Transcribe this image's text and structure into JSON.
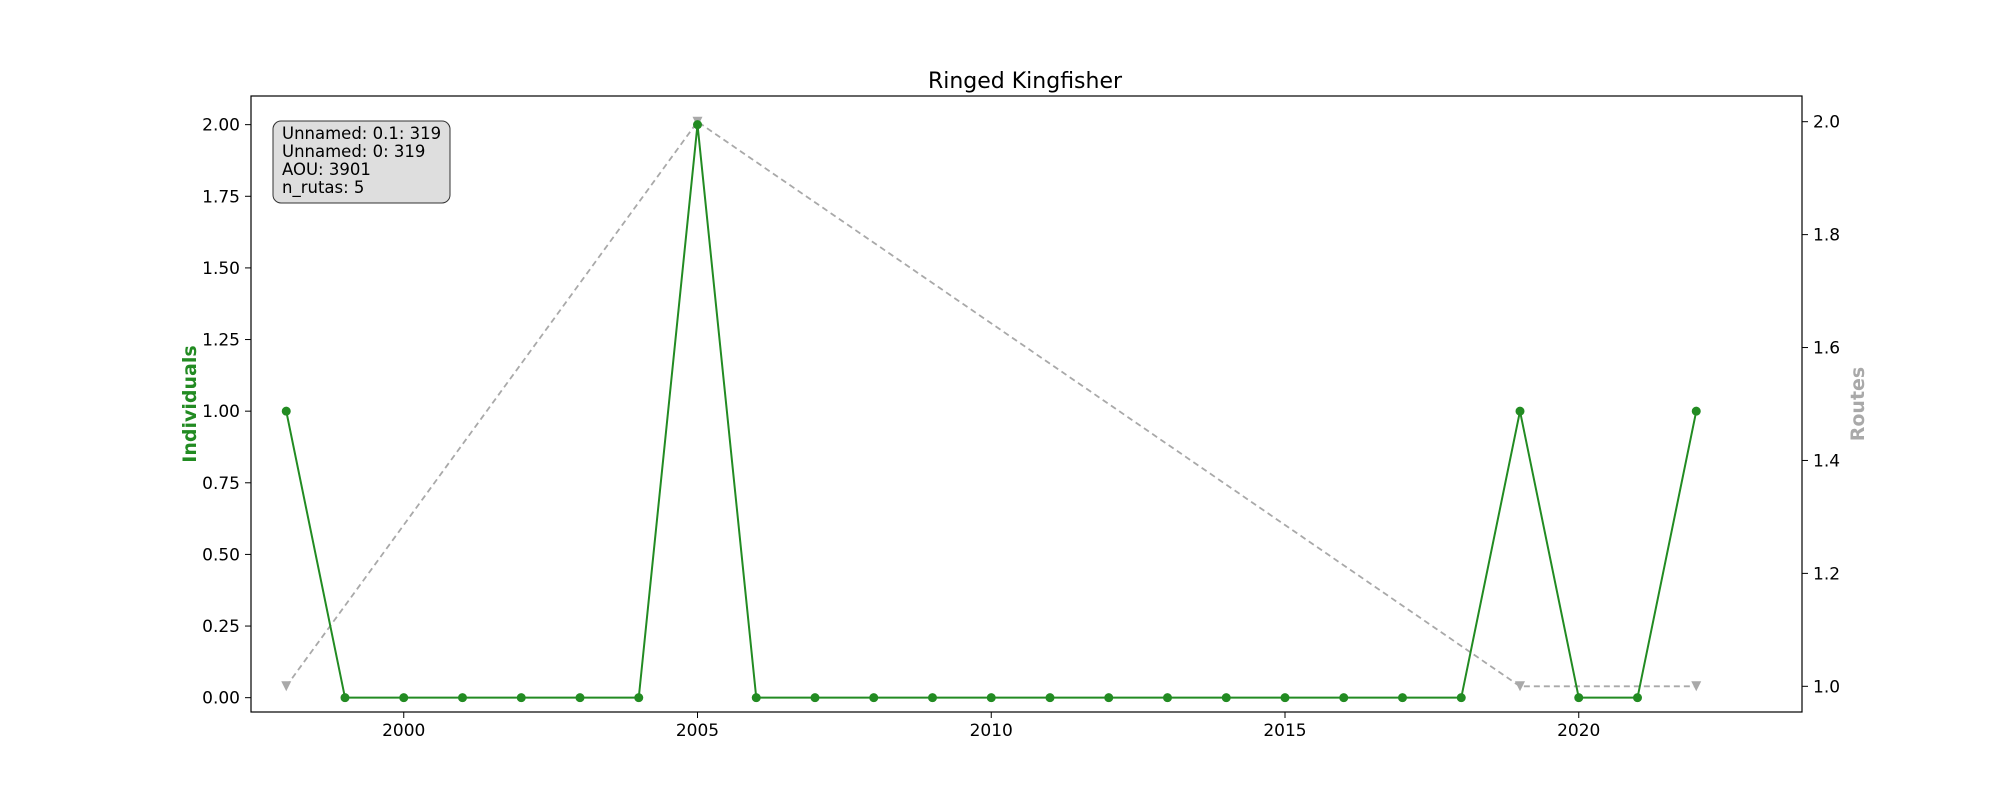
{
  "chart_data": {
    "type": "line",
    "title": "Ringed Kingfisher",
    "ylabel_left": "Individuals",
    "ylabel_right": "Routes",
    "xlim": [
      1997.4,
      2023.8
    ],
    "ylim_left": [
      -0.05,
      2.1
    ],
    "ylim_right": [
      0.9545,
      2.0455
    ],
    "x_ticks": [
      2000,
      2005,
      2010,
      2015,
      2020
    ],
    "y_ticks_left": [
      "0.00",
      "0.25",
      "0.50",
      "0.75",
      "1.00",
      "1.25",
      "1.50",
      "1.75",
      "2.00"
    ],
    "y_ticks_right": [
      "1.0",
      "1.2",
      "1.4",
      "1.6",
      "1.8",
      "2.0"
    ],
    "grid": false,
    "series": [
      {
        "name": "Individuals",
        "axis": "left",
        "color": "#228b22",
        "style": "solid",
        "marker": "circle",
        "x": [
          1998,
          1999,
          2000,
          2001,
          2002,
          2003,
          2004,
          2005,
          2006,
          2007,
          2008,
          2009,
          2010,
          2011,
          2012,
          2013,
          2014,
          2015,
          2016,
          2017,
          2018,
          2019,
          2020,
          2021,
          2022
        ],
        "values": [
          1,
          0,
          0,
          0,
          0,
          0,
          0,
          2,
          0,
          0,
          0,
          0,
          0,
          0,
          0,
          0,
          0,
          0,
          0,
          0,
          0,
          1,
          0,
          0,
          1
        ]
      },
      {
        "name": "Routes",
        "axis": "right",
        "color": "#a9a9a9",
        "style": "dashed",
        "marker": "triangle-down",
        "x": [
          1998,
          2005,
          2019,
          2022
        ],
        "values": [
          1,
          2,
          1,
          1
        ]
      }
    ],
    "info_box": {
      "lines": [
        "Unnamed: 0.1: 319",
        "Unnamed: 0: 319",
        "AOU: 3901",
        "n_rutas: 5"
      ],
      "background": "#dedede"
    }
  }
}
